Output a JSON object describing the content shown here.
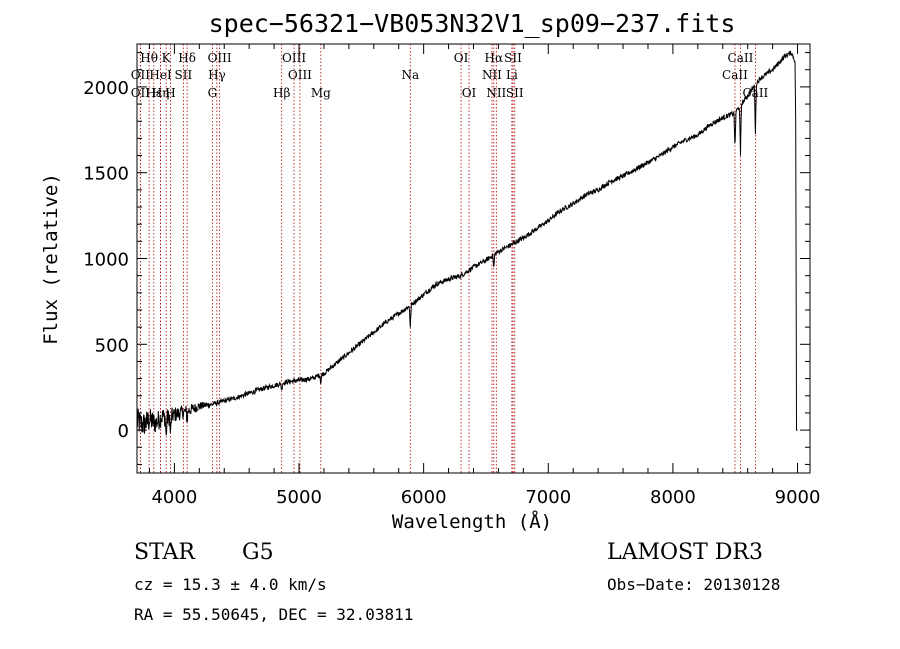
{
  "chart_data": {
    "type": "line",
    "title": "spec−56321−VB053N32V1_sp09−237.fits",
    "xlabel": "Wavelength (Å)",
    "ylabel": "Flux (relative)",
    "xlim": [
      3700,
      9100
    ],
    "ylim": [
      -250,
      2250
    ],
    "xticks": [
      4000,
      5000,
      6000,
      7000,
      8000,
      9000
    ],
    "yticks": [
      0,
      500,
      1000,
      1500,
      2000
    ],
    "series": [
      {
        "name": "spectrum",
        "x": [
          3700,
          3750,
          3800,
          3850,
          3900,
          3950,
          4000,
          4100,
          4200,
          4300,
          4400,
          4500,
          4600,
          4700,
          4800,
          4900,
          5000,
          5100,
          5200,
          5300,
          5400,
          5500,
          5600,
          5700,
          5800,
          5900,
          6000,
          6100,
          6200,
          6300,
          6400,
          6500,
          6600,
          6700,
          6800,
          6900,
          7000,
          7100,
          7200,
          7300,
          7400,
          7500,
          7600,
          7700,
          7800,
          7900,
          8000,
          8100,
          8200,
          8300,
          8400,
          8500,
          8600,
          8700,
          8800,
          8900,
          8950,
          8980
        ],
        "y": [
          50,
          30,
          60,
          40,
          80,
          70,
          90,
          110,
          140,
          150,
          170,
          190,
          215,
          240,
          260,
          280,
          290,
          300,
          330,
          390,
          450,
          510,
          570,
          630,
          680,
          730,
          790,
          850,
          880,
          900,
          950,
          990,
          1040,
          1080,
          1120,
          1170,
          1220,
          1280,
          1320,
          1370,
          1400,
          1450,
          1480,
          1520,
          1560,
          1600,
          1650,
          1690,
          1720,
          1780,
          1820,
          1850,
          1950,
          2050,
          2100,
          2180,
          2200,
          2150
        ]
      }
    ],
    "emission_lines": [
      {
        "label": "Hθ",
        "x": 3797,
        "row": 1
      },
      {
        "label": "OII",
        "x": 3727,
        "row": 2
      },
      {
        "label": "OII",
        "x": 3727,
        "row": 3
      },
      {
        "label": "Hε",
        "x": 3835,
        "row": 3
      },
      {
        "label": "Hη",
        "x": 3889,
        "row": 3
      },
      {
        "label": "K",
        "x": 3934,
        "row": 1
      },
      {
        "label": "HeI",
        "x": 3889,
        "row": 2
      },
      {
        "label": "SII",
        "x": 4072,
        "row": 2
      },
      {
        "label": "H",
        "x": 3969,
        "row": 3
      },
      {
        "label": "Hδ",
        "x": 4102,
        "row": 1
      },
      {
        "label": "OIII",
        "x": 4363,
        "row": 1
      },
      {
        "label": "Hγ",
        "x": 4341,
        "row": 2
      },
      {
        "label": "G",
        "x": 4305,
        "row": 3
      },
      {
        "label": "OIII",
        "x": 4960,
        "row": 1
      },
      {
        "label": "OIII",
        "x": 5007,
        "row": 2
      },
      {
        "label": "Hβ",
        "x": 4861,
        "row": 3
      },
      {
        "label": "Mg",
        "x": 5175,
        "row": 3
      },
      {
        "label": "Na",
        "x": 5893,
        "row": 2
      },
      {
        "label": "OI",
        "x": 6300,
        "row": 1
      },
      {
        "label": "OI",
        "x": 6364,
        "row": 3
      },
      {
        "label": "Hα",
        "x": 6563,
        "row": 1
      },
      {
        "label": "NII",
        "x": 6548,
        "row": 2
      },
      {
        "label": "NII",
        "x": 6583,
        "row": 3
      },
      {
        "label": "SII",
        "x": 6717,
        "row": 1
      },
      {
        "label": "Li",
        "x": 6708,
        "row": 2
      },
      {
        "label": "SII",
        "x": 6731,
        "row": 3
      },
      {
        "label": "CaII",
        "x": 8542,
        "row": 1
      },
      {
        "label": "CaII",
        "x": 8498,
        "row": 2
      },
      {
        "label": "CaII",
        "x": 8662,
        "row": 3
      }
    ]
  },
  "info": {
    "class": "STAR",
    "subclass": "G5",
    "survey": "LAMOST DR3",
    "cz": "cz = 15.3 ± 4.0 km/s",
    "obs_date": "Obs−Date: 20130128",
    "radec": "RA =  55.50645, DEC =  32.03811"
  }
}
